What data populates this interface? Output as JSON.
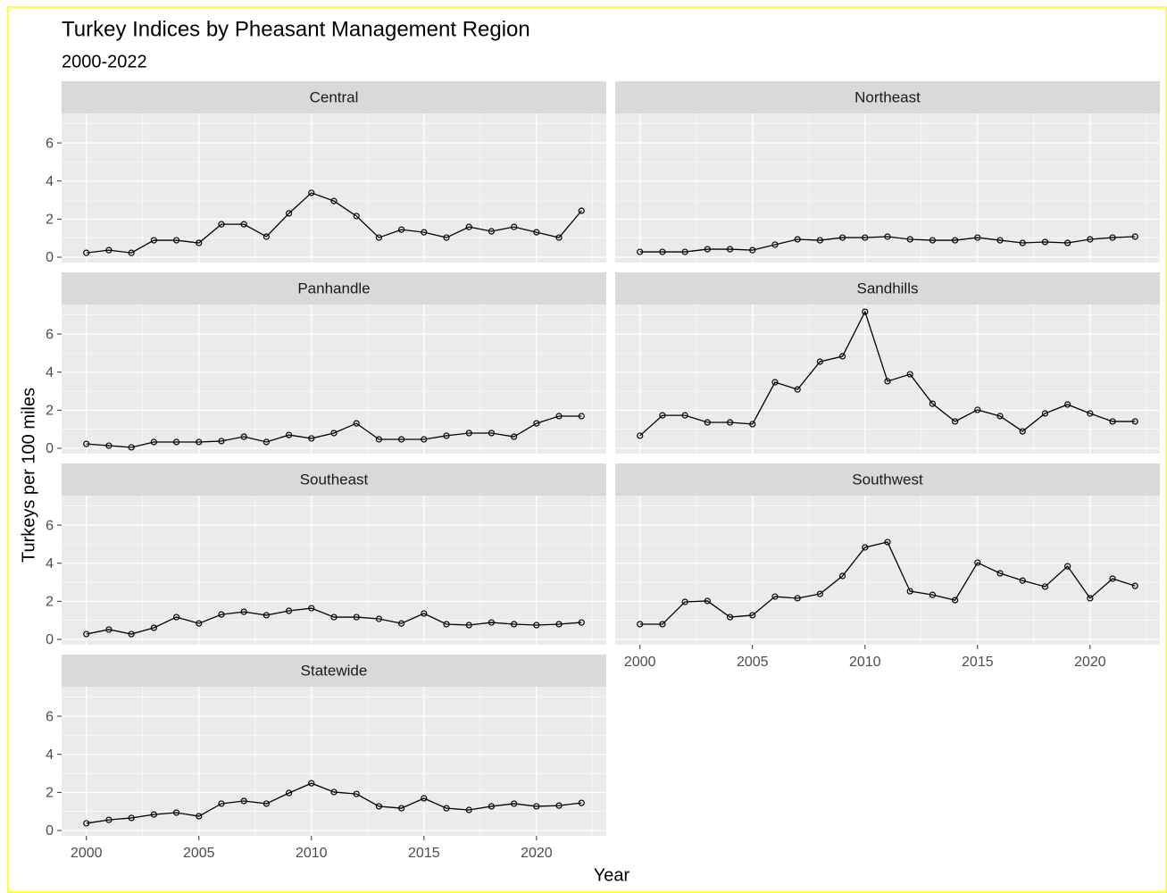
{
  "title": "Turkey Indices by Pheasant Management Region",
  "subtitle": "2000-2022",
  "x_label": "Year",
  "y_label": "Turkeys per 100 miles",
  "chart_data": [
    {
      "type": "line",
      "title": "Central",
      "x": [
        2000,
        2001,
        2002,
        2003,
        2004,
        2005,
        2006,
        2007,
        2008,
        2009,
        2010,
        2011,
        2012,
        2013,
        2014,
        2015,
        2016,
        2017,
        2018,
        2019,
        2020,
        2021,
        2022
      ],
      "values": [
        0.23,
        0.37,
        0.23,
        0.89,
        0.89,
        0.75,
        1.73,
        1.73,
        1.08,
        2.3,
        3.38,
        2.95,
        2.16,
        1.03,
        1.45,
        1.31,
        1.03,
        1.59,
        1.36,
        1.59,
        1.31,
        1.03,
        2.44
      ],
      "color": "#000000",
      "xlim": [
        1998.9,
        2023.1
      ],
      "ylim": [
        -0.28,
        7.55
      ],
      "xticks": [
        2000,
        2005,
        2010,
        2015,
        2020
      ],
      "yticks": [
        0,
        2,
        4,
        6
      ],
      "grid": true
    },
    {
      "type": "line",
      "title": "Northeast",
      "x": [
        2000,
        2001,
        2002,
        2003,
        2004,
        2005,
        2006,
        2007,
        2008,
        2009,
        2010,
        2011,
        2012,
        2013,
        2014,
        2015,
        2016,
        2017,
        2018,
        2019,
        2020,
        2021,
        2022
      ],
      "values": [
        0.28,
        0.28,
        0.28,
        0.42,
        0.42,
        0.37,
        0.66,
        0.94,
        0.89,
        1.03,
        1.03,
        1.08,
        0.94,
        0.89,
        0.89,
        1.03,
        0.89,
        0.75,
        0.8,
        0.75,
        0.94,
        1.03,
        1.08
      ],
      "color": "#000000",
      "xlim": [
        1998.9,
        2023.1
      ],
      "ylim": [
        -0.28,
        7.55
      ],
      "xticks": [
        2000,
        2005,
        2010,
        2015,
        2020
      ],
      "yticks": [
        0,
        2,
        4,
        6
      ],
      "grid": true
    },
    {
      "type": "line",
      "title": "Panhandle",
      "x": [
        2000,
        2001,
        2002,
        2003,
        2004,
        2005,
        2006,
        2007,
        2008,
        2009,
        2010,
        2011,
        2012,
        2013,
        2014,
        2015,
        2016,
        2017,
        2018,
        2019,
        2020,
        2021,
        2022
      ],
      "values": [
        0.23,
        0.14,
        0.05,
        0.33,
        0.33,
        0.33,
        0.38,
        0.61,
        0.33,
        0.7,
        0.52,
        0.8,
        1.31,
        0.47,
        0.47,
        0.47,
        0.66,
        0.8,
        0.8,
        0.61,
        1.31,
        1.69,
        1.69
      ],
      "color": "#000000",
      "xlim": [
        1998.9,
        2023.1
      ],
      "ylim": [
        -0.28,
        7.55
      ],
      "xticks": [
        2000,
        2005,
        2010,
        2015,
        2020
      ],
      "yticks": [
        0,
        2,
        4,
        6
      ],
      "grid": true
    },
    {
      "type": "line",
      "title": "Sandhills",
      "x": [
        2000,
        2001,
        2002,
        2003,
        2004,
        2005,
        2006,
        2007,
        2008,
        2009,
        2010,
        2011,
        2012,
        2013,
        2014,
        2015,
        2016,
        2017,
        2018,
        2019,
        2020,
        2021,
        2022
      ],
      "values": [
        0.66,
        1.73,
        1.73,
        1.36,
        1.36,
        1.27,
        3.47,
        3.09,
        4.55,
        4.83,
        7.17,
        3.52,
        3.89,
        2.34,
        1.41,
        2.02,
        1.69,
        0.89,
        1.83,
        2.3,
        1.83,
        1.41,
        1.41
      ],
      "color": "#000000",
      "xlim": [
        1998.9,
        2023.1
      ],
      "ylim": [
        -0.28,
        7.55
      ],
      "xticks": [
        2000,
        2005,
        2010,
        2015,
        2020
      ],
      "yticks": [
        0,
        2,
        4,
        6
      ],
      "grid": true
    },
    {
      "type": "line",
      "title": "Southeast",
      "x": [
        2000,
        2001,
        2002,
        2003,
        2004,
        2005,
        2006,
        2007,
        2008,
        2009,
        2010,
        2011,
        2012,
        2013,
        2014,
        2015,
        2016,
        2017,
        2018,
        2019,
        2020,
        2021,
        2022
      ],
      "values": [
        0.28,
        0.52,
        0.28,
        0.61,
        1.17,
        0.84,
        1.31,
        1.45,
        1.27,
        1.5,
        1.64,
        1.17,
        1.17,
        1.08,
        0.84,
        1.36,
        0.8,
        0.75,
        0.89,
        0.8,
        0.75,
        0.8,
        0.89
      ],
      "color": "#000000",
      "xlim": [
        1998.9,
        2023.1
      ],
      "ylim": [
        -0.28,
        7.55
      ],
      "xticks": [
        2000,
        2005,
        2010,
        2015,
        2020
      ],
      "yticks": [
        0,
        2,
        4,
        6
      ],
      "grid": true
    },
    {
      "type": "line",
      "title": "Southwest",
      "x": [
        2000,
        2001,
        2002,
        2003,
        2004,
        2005,
        2006,
        2007,
        2008,
        2009,
        2010,
        2011,
        2012,
        2013,
        2014,
        2015,
        2016,
        2017,
        2018,
        2019,
        2020,
        2021,
        2022
      ],
      "values": [
        0.8,
        0.8,
        1.97,
        2.02,
        1.17,
        1.27,
        2.25,
        2.16,
        2.39,
        3.33,
        4.83,
        5.11,
        2.53,
        2.34,
        2.06,
        4.03,
        3.47,
        3.09,
        2.77,
        3.84,
        2.16,
        3.19,
        2.81
      ],
      "color": "#000000",
      "xlim": [
        1998.9,
        2023.1
      ],
      "ylim": [
        -0.28,
        7.55
      ],
      "xticks": [
        2000,
        2005,
        2010,
        2015,
        2020
      ],
      "yticks": [
        0,
        2,
        4,
        6
      ],
      "grid": true
    },
    {
      "type": "line",
      "title": "Statewide",
      "x": [
        2000,
        2001,
        2002,
        2003,
        2004,
        2005,
        2006,
        2007,
        2008,
        2009,
        2010,
        2011,
        2012,
        2013,
        2014,
        2015,
        2016,
        2017,
        2018,
        2019,
        2020,
        2021,
        2022
      ],
      "values": [
        0.38,
        0.56,
        0.66,
        0.84,
        0.94,
        0.75,
        1.41,
        1.55,
        1.41,
        1.97,
        2.48,
        2.02,
        1.92,
        1.27,
        1.17,
        1.69,
        1.17,
        1.08,
        1.27,
        1.41,
        1.27,
        1.31,
        1.45
      ],
      "color": "#000000",
      "xlim": [
        1998.9,
        2023.1
      ],
      "ylim": [
        -0.28,
        7.55
      ],
      "xticks": [
        2000,
        2005,
        2010,
        2015,
        2020
      ],
      "yticks": [
        0,
        2,
        4,
        6
      ],
      "grid": true
    }
  ]
}
